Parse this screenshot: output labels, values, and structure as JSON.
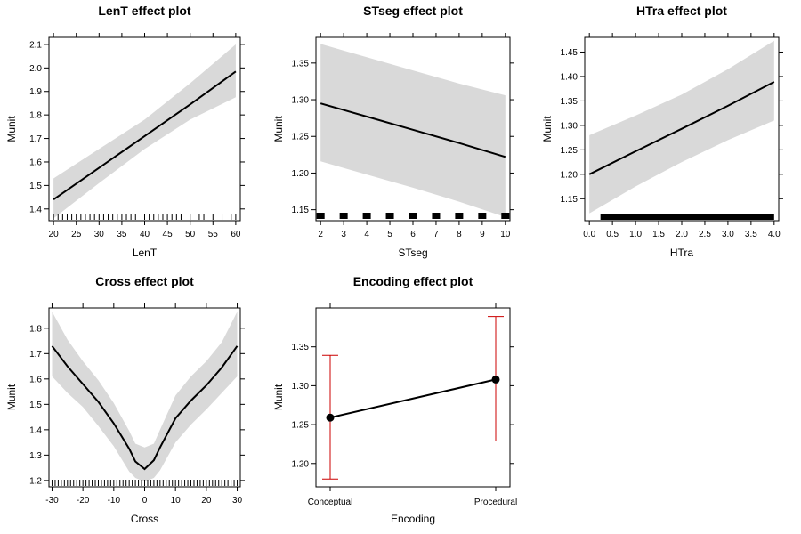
{
  "chart_data": [
    {
      "type": "line",
      "title": "LenT effect plot",
      "xlabel": "LenT",
      "ylabel": "Munit",
      "xlim": [
        19,
        61
      ],
      "ylim": [
        1.35,
        2.13
      ],
      "xticks": [
        20,
        25,
        30,
        35,
        40,
        45,
        50,
        55,
        60
      ],
      "yticks": [
        1.4,
        1.5,
        1.6,
        1.7,
        1.8,
        1.9,
        2.0,
        2.1
      ],
      "ytick_labels": [
        "1.4",
        "1.5",
        "1.6",
        "1.7",
        "1.8",
        "1.9",
        "2.0",
        "2.1"
      ],
      "x": [
        20,
        30,
        40,
        50,
        60
      ],
      "fit": [
        1.44,
        1.575,
        1.71,
        1.845,
        1.985
      ],
      "lower": [
        1.36,
        1.51,
        1.655,
        1.78,
        1.875
      ],
      "upper": [
        1.53,
        1.655,
        1.78,
        1.935,
        2.1
      ],
      "rug": [
        20,
        21,
        22,
        23,
        24,
        25,
        26,
        27,
        28,
        29,
        30,
        31,
        32,
        33,
        34,
        35,
        36,
        37,
        38,
        40,
        41,
        42,
        43,
        44,
        45,
        46,
        47,
        48,
        50,
        52,
        53,
        55,
        57,
        59,
        60
      ],
      "rug_style": "thin",
      "grid": false
    },
    {
      "type": "line",
      "title": "STseg effect plot",
      "xlabel": "STseg",
      "ylabel": "Munit",
      "xlim": [
        1.8,
        10.2
      ],
      "ylim": [
        1.135,
        1.385
      ],
      "xticks": [
        2,
        3,
        4,
        5,
        6,
        7,
        8,
        9,
        10
      ],
      "yticks": [
        1.15,
        1.2,
        1.25,
        1.3,
        1.35
      ],
      "ytick_labels": [
        "1.15",
        "1.20",
        "1.25",
        "1.30",
        "1.35"
      ],
      "x": [
        2,
        4,
        6,
        8,
        10
      ],
      "fit": [
        1.295,
        1.277,
        1.259,
        1.241,
        1.222
      ],
      "lower": [
        1.216,
        1.198,
        1.18,
        1.161,
        1.14
      ],
      "upper": [
        1.376,
        1.358,
        1.34,
        1.322,
        1.306
      ],
      "rug": [
        2,
        3,
        4,
        5,
        6,
        7,
        8,
        9,
        10
      ],
      "rug_style": "block",
      "grid": false
    },
    {
      "type": "line",
      "title": "HTra effect plot",
      "xlabel": "HTra",
      "ylabel": "Munit",
      "xlim": [
        -0.1,
        4.1
      ],
      "ylim": [
        1.105,
        1.48
      ],
      "xticks": [
        0.0,
        0.5,
        1.0,
        1.5,
        2.0,
        2.5,
        3.0,
        3.5,
        4.0
      ],
      "xtick_labels": [
        "0.0",
        "0.5",
        "1.0",
        "1.5",
        "2.0",
        "2.5",
        "3.0",
        "3.5",
        "4.0"
      ],
      "yticks": [
        1.15,
        1.2,
        1.25,
        1.3,
        1.35,
        1.4,
        1.45
      ],
      "ytick_labels": [
        "1.15",
        "1.20",
        "1.25",
        "1.30",
        "1.35",
        "1.40",
        "1.45"
      ],
      "x": [
        0,
        1,
        2,
        3,
        4
      ],
      "fit": [
        1.2,
        1.247,
        1.293,
        1.34,
        1.389
      ],
      "lower": [
        1.12,
        1.175,
        1.225,
        1.27,
        1.31
      ],
      "upper": [
        1.28,
        1.32,
        1.363,
        1.415,
        1.473
      ],
      "rug_range": [
        0.25,
        4.0
      ],
      "rug": [
        0.25,
        0.3,
        0.35,
        0.4
      ],
      "rug_style": "dense",
      "grid": false
    },
    {
      "type": "line",
      "title": "Cross effect plot",
      "xlabel": "Cross",
      "ylabel": "Munit",
      "xlim": [
        -31,
        31
      ],
      "ylim": [
        1.175,
        1.88
      ],
      "xticks": [
        -30,
        -20,
        -10,
        0,
        10,
        20,
        30
      ],
      "yticks": [
        1.2,
        1.3,
        1.4,
        1.5,
        1.6,
        1.7,
        1.8
      ],
      "x": [
        -30,
        -25,
        -20,
        -15,
        -10,
        -5,
        -3,
        0,
        3,
        5,
        10,
        15,
        20,
        25,
        30
      ],
      "fit": [
        1.73,
        1.65,
        1.58,
        1.51,
        1.425,
        1.325,
        1.275,
        1.245,
        1.28,
        1.33,
        1.445,
        1.515,
        1.575,
        1.645,
        1.73
      ],
      "lower": [
        1.61,
        1.545,
        1.49,
        1.415,
        1.335,
        1.235,
        1.21,
        1.195,
        1.21,
        1.24,
        1.35,
        1.42,
        1.48,
        1.545,
        1.61
      ],
      "upper": [
        1.865,
        1.755,
        1.67,
        1.595,
        1.505,
        1.395,
        1.345,
        1.33,
        1.345,
        1.4,
        1.535,
        1.61,
        1.67,
        1.745,
        1.865
      ],
      "rug": [
        -30,
        -29,
        -28,
        -27,
        -26,
        -25,
        -24,
        -23,
        -22,
        -21,
        -20,
        -19,
        -18,
        -17,
        -16,
        -15,
        -14,
        -13,
        -12,
        -11,
        -10,
        -9,
        -8,
        -7,
        -6,
        -5,
        -4,
        -3,
        -2,
        -1,
        0,
        1,
        2,
        3,
        4,
        5,
        6,
        7,
        8,
        9,
        10,
        11,
        12,
        13,
        14,
        15,
        16,
        17,
        18,
        19,
        20,
        21,
        22,
        23,
        24,
        25,
        26,
        27,
        28,
        29,
        30
      ],
      "rug_style": "thin",
      "grid": false
    },
    {
      "type": "errorbar",
      "title": "Encoding effect plot",
      "xlabel": "Encoding",
      "ylabel": "Munit",
      "categories": [
        "Conceptual",
        "Procedural"
      ],
      "fit": [
        1.259,
        1.308
      ],
      "lower": [
        1.18,
        1.229
      ],
      "upper": [
        1.339,
        1.389
      ],
      "ylim": [
        1.17,
        1.4
      ],
      "yticks": [
        1.2,
        1.25,
        1.3,
        1.35
      ],
      "ytick_labels": [
        "1.20",
        "1.25",
        "1.30",
        "1.35"
      ],
      "colors": {
        "line": "#000000",
        "errorbar": "#cc0000"
      },
      "grid": false
    }
  ],
  "colors": {
    "band": "#d9d9d9",
    "line": "#000000",
    "frame": "#000000"
  }
}
